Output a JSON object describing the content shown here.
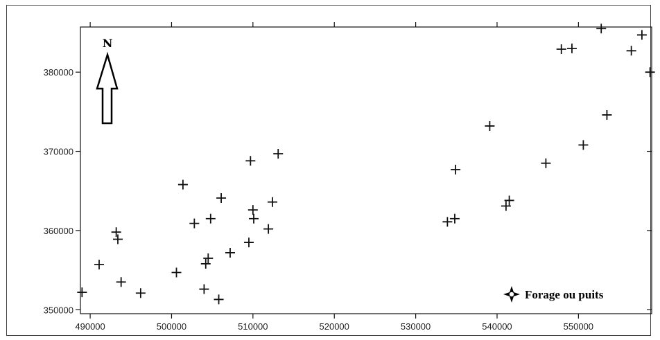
{
  "chart_data": {
    "type": "scatter",
    "title": "",
    "xlabel": "",
    "ylabel": "",
    "xlim": [
      488800,
      559000
    ],
    "ylim": [
      349500,
      385700
    ],
    "xticks": [
      490000,
      500000,
      510000,
      520000,
      530000,
      540000,
      550000
    ],
    "yticks": [
      350000,
      360000,
      370000,
      380000
    ],
    "x_tick_labels": [
      "490000",
      "500000",
      "510000",
      "520000",
      "530000",
      "540000",
      "550000"
    ],
    "y_tick_labels": [
      "350000",
      "360000",
      "370000",
      "380000"
    ],
    "north_label": "N",
    "legend": {
      "label": "Forage ou puits",
      "placement": "bottom-right"
    },
    "marker_color": "#111111",
    "series": [
      {
        "name": "Forage ou puits",
        "points": [
          {
            "x": 489000,
            "y": 352200
          },
          {
            "x": 491100,
            "y": 355700
          },
          {
            "x": 493200,
            "y": 359800
          },
          {
            "x": 493400,
            "y": 358900
          },
          {
            "x": 493800,
            "y": 353500
          },
          {
            "x": 496200,
            "y": 352100
          },
          {
            "x": 500600,
            "y": 354700
          },
          {
            "x": 501400,
            "y": 365800
          },
          {
            "x": 502800,
            "y": 360900
          },
          {
            "x": 504000,
            "y": 352600
          },
          {
            "x": 504200,
            "y": 355800
          },
          {
            "x": 504500,
            "y": 356500
          },
          {
            "x": 504800,
            "y": 361500
          },
          {
            "x": 505800,
            "y": 351300
          },
          {
            "x": 506100,
            "y": 364100
          },
          {
            "x": 507200,
            "y": 357200
          },
          {
            "x": 509500,
            "y": 358500
          },
          {
            "x": 509700,
            "y": 368800
          },
          {
            "x": 510000,
            "y": 362600
          },
          {
            "x": 510100,
            "y": 361500
          },
          {
            "x": 511900,
            "y": 360200
          },
          {
            "x": 512400,
            "y": 363600
          },
          {
            "x": 513100,
            "y": 369700
          },
          {
            "x": 533900,
            "y": 361100
          },
          {
            "x": 534800,
            "y": 361500
          },
          {
            "x": 534900,
            "y": 367700
          },
          {
            "x": 539100,
            "y": 373200
          },
          {
            "x": 541100,
            "y": 363100
          },
          {
            "x": 541500,
            "y": 363800
          },
          {
            "x": 546000,
            "y": 368500
          },
          {
            "x": 547900,
            "y": 382900
          },
          {
            "x": 549200,
            "y": 383000
          },
          {
            "x": 550600,
            "y": 370800
          },
          {
            "x": 552800,
            "y": 385500
          },
          {
            "x": 553500,
            "y": 374600
          },
          {
            "x": 556500,
            "y": 382700
          },
          {
            "x": 557800,
            "y": 384700
          },
          {
            "x": 558800,
            "y": 380000
          }
        ]
      }
    ]
  }
}
